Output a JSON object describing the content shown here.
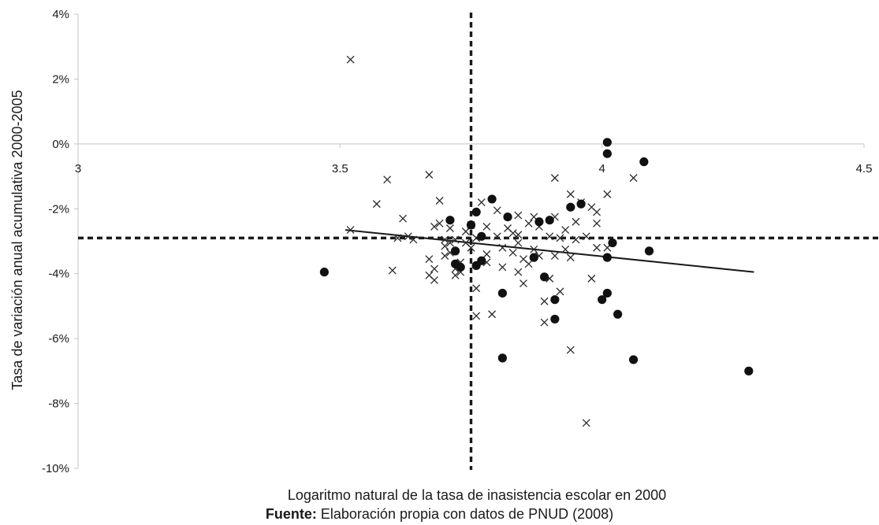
{
  "chart_data": {
    "type": "scatter",
    "xlabel": "Logaritmo natural de la tasa de inasistencia escolar en 2000",
    "ylabel": "Tasa de variación anual acumulativa 2000-2005",
    "xlim": [
      3,
      4.5
    ],
    "ylim": [
      -10,
      4
    ],
    "x_ticks": [
      3,
      3.5,
      4,
      4.5
    ],
    "x_tick_labels": [
      "3",
      "3.5",
      "4",
      "4.5"
    ],
    "y_ticks": [
      4,
      2,
      0,
      -2,
      -4,
      -6,
      -8,
      -10
    ],
    "y_tick_labels": [
      "4%",
      "2%",
      "0%",
      "-2%",
      "-4%",
      "-6%",
      "-8%",
      "-10%"
    ],
    "grid": false,
    "reference_lines": {
      "vertical_x": 3.75,
      "horizontal_y": -2.9,
      "style": "dotted"
    },
    "trendline": {
      "x1": 3.51,
      "y1": -2.65,
      "x2": 4.29,
      "y2": -3.95
    },
    "series": [
      {
        "marker": "x",
        "points": [
          [
            3.52,
            2.6
          ],
          [
            3.52,
            -2.65
          ],
          [
            3.57,
            -1.85
          ],
          [
            3.59,
            -1.1
          ],
          [
            3.6,
            -3.9
          ],
          [
            3.61,
            -2.9
          ],
          [
            3.62,
            -2.3
          ],
          [
            3.63,
            -2.85
          ],
          [
            3.64,
            -2.95
          ],
          [
            3.67,
            -0.95
          ],
          [
            3.67,
            -3.55
          ],
          [
            3.67,
            -4.05
          ],
          [
            3.68,
            -4.2
          ],
          [
            3.68,
            -2.55
          ],
          [
            3.68,
            -3.85
          ],
          [
            3.69,
            -2.45
          ],
          [
            3.69,
            -1.75
          ],
          [
            3.7,
            -2.95
          ],
          [
            3.7,
            -3.15
          ],
          [
            3.7,
            -3.45
          ],
          [
            3.71,
            -2.6
          ],
          [
            3.71,
            -3.05
          ],
          [
            3.71,
            -3.35
          ],
          [
            3.72,
            -2.95
          ],
          [
            3.72,
            -3.85
          ],
          [
            3.72,
            -4.05
          ],
          [
            3.73,
            -3.95
          ],
          [
            3.73,
            -3.65
          ],
          [
            3.74,
            -2.7
          ],
          [
            3.74,
            -3.05
          ],
          [
            3.75,
            -2.5
          ],
          [
            3.75,
            -3.2
          ],
          [
            3.76,
            -2.9
          ],
          [
            3.76,
            -4.45
          ],
          [
            3.76,
            -5.3
          ],
          [
            3.77,
            -1.8
          ],
          [
            3.78,
            -2.55
          ],
          [
            3.78,
            -3.4
          ],
          [
            3.78,
            -3.65
          ],
          [
            3.79,
            -5.25
          ],
          [
            3.8,
            -2.85
          ],
          [
            3.8,
            -2.05
          ],
          [
            3.81,
            -3.2
          ],
          [
            3.81,
            -3.8
          ],
          [
            3.82,
            -2.6
          ],
          [
            3.83,
            -3.35
          ],
          [
            3.83,
            -2.75
          ],
          [
            3.84,
            -2.2
          ],
          [
            3.84,
            -2.8
          ],
          [
            3.84,
            -3.05
          ],
          [
            3.84,
            -3.95
          ],
          [
            3.85,
            -4.3
          ],
          [
            3.85,
            -3.55
          ],
          [
            3.86,
            -3.7
          ],
          [
            3.86,
            -2.45
          ],
          [
            3.87,
            -3.25
          ],
          [
            3.87,
            -2.25
          ],
          [
            3.88,
            -3.45
          ],
          [
            3.88,
            -2.55
          ],
          [
            3.89,
            -4.85
          ],
          [
            3.89,
            -5.5
          ],
          [
            3.9,
            -4.15
          ],
          [
            3.9,
            -2.85
          ],
          [
            3.91,
            -1.05
          ],
          [
            3.91,
            -3.45
          ],
          [
            3.91,
            -2.25
          ],
          [
            3.92,
            -4.55
          ],
          [
            3.92,
            -2.9
          ],
          [
            3.93,
            -2.65
          ],
          [
            3.93,
            -3.25
          ],
          [
            3.94,
            -6.35
          ],
          [
            3.94,
            -3.5
          ],
          [
            3.94,
            -1.55
          ],
          [
            3.95,
            -2.95
          ],
          [
            3.95,
            -2.4
          ],
          [
            3.96,
            -1.8
          ],
          [
            3.97,
            -8.6
          ],
          [
            3.97,
            -2.85
          ],
          [
            3.98,
            -4.15
          ],
          [
            3.98,
            -1.95
          ],
          [
            3.99,
            -3.2
          ],
          [
            3.99,
            -2.1
          ],
          [
            3.99,
            -2.45
          ],
          [
            4.01,
            -1.55
          ],
          [
            4.01,
            -3.2
          ],
          [
            4.06,
            -1.05
          ]
        ]
      },
      {
        "marker": "filled-circle",
        "points": [
          [
            3.47,
            -3.95
          ],
          [
            3.71,
            -2.35
          ],
          [
            3.72,
            -3.3
          ],
          [
            3.72,
            -3.7
          ],
          [
            3.73,
            -3.8
          ],
          [
            3.75,
            -2.5
          ],
          [
            3.76,
            -2.1
          ],
          [
            3.76,
            -3.75
          ],
          [
            3.77,
            -2.85
          ],
          [
            3.77,
            -3.6
          ],
          [
            3.79,
            -1.7
          ],
          [
            3.81,
            -4.6
          ],
          [
            3.81,
            -6.6
          ],
          [
            3.82,
            -2.25
          ],
          [
            3.87,
            -3.5
          ],
          [
            3.88,
            -2.4
          ],
          [
            3.89,
            -4.1
          ],
          [
            3.9,
            -2.35
          ],
          [
            3.91,
            -4.8
          ],
          [
            3.91,
            -5.4
          ],
          [
            3.94,
            -1.95
          ],
          [
            3.96,
            -1.85
          ],
          [
            4.0,
            -4.8
          ],
          [
            4.01,
            0.05
          ],
          [
            4.01,
            -0.3
          ],
          [
            4.01,
            -3.5
          ],
          [
            4.01,
            -4.6
          ],
          [
            4.02,
            -3.05
          ],
          [
            4.03,
            -5.25
          ],
          [
            4.06,
            -6.65
          ],
          [
            4.08,
            -0.55
          ],
          [
            4.09,
            -3.3
          ],
          [
            4.28,
            -7.0
          ]
        ]
      }
    ]
  },
  "footer": {
    "source_label": "Fuente:",
    "source_text": " Elaboración propia con datos de PNUD (2008)"
  },
  "colors": {
    "ink": "#1a1a1a",
    "axis": "#c4c4c4",
    "marker_x": "#2a2a2a",
    "marker_dot": "#111111"
  }
}
